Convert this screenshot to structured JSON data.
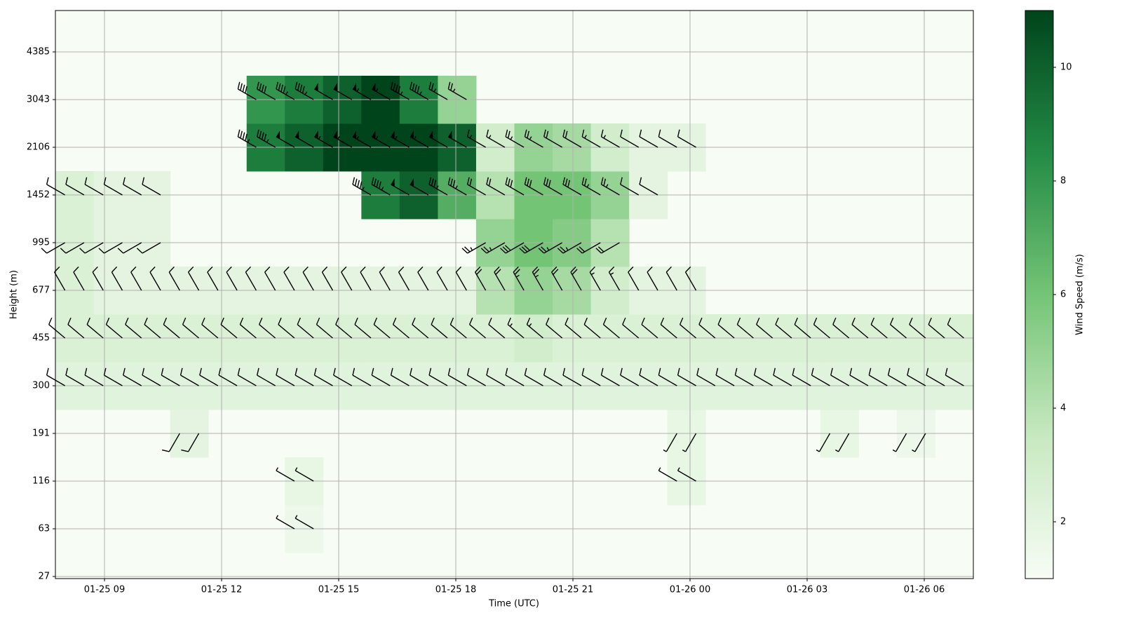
{
  "chart_data": {
    "type": "heatmap",
    "x_label": "Time (UTC)",
    "y_label": "Height (m)",
    "colorbar_label": "Wind Speed (m/s)",
    "xticks": [
      "01-25 09",
      "01-25 12",
      "01-25 15",
      "01-25 18",
      "01-25 21",
      "01-26 00",
      "01-26 03",
      "01-26 06"
    ],
    "yticks": [
      27,
      63,
      116,
      191,
      300,
      455,
      677,
      995,
      1452,
      2106,
      3043,
      4385
    ],
    "zlim": [
      1,
      11
    ],
    "zticks": [
      2,
      4,
      6,
      8,
      10
    ],
    "grid": true,
    "colors": [
      "#f7fcf5",
      "#c7e9c0",
      "#74c476",
      "#238b45",
      "#00441b"
    ],
    "directions": [
      300,
      300,
      300,
      210,
      300,
      310,
      330,
      240,
      300,
      300,
      300,
      300
    ],
    "speed": [
      [
        null,
        null,
        null,
        null,
        null,
        null,
        null,
        null,
        null,
        null,
        null,
        null,
        null,
        null,
        null,
        null,
        null,
        null,
        null,
        null,
        null,
        null,
        null,
        null
      ],
      [
        null,
        null,
        null,
        null,
        null,
        null,
        1.5,
        null,
        null,
        null,
        null,
        null,
        null,
        null,
        null,
        null,
        null,
        null,
        null,
        null,
        null,
        null,
        null,
        null
      ],
      [
        null,
        null,
        null,
        null,
        null,
        null,
        1.8,
        null,
        null,
        null,
        null,
        null,
        null,
        null,
        null,
        null,
        1.8,
        null,
        null,
        null,
        null,
        null,
        null,
        null
      ],
      [
        null,
        null,
        null,
        2,
        null,
        null,
        null,
        null,
        null,
        null,
        null,
        null,
        null,
        null,
        null,
        null,
        1.8,
        null,
        null,
        null,
        1.8,
        null,
        1.5,
        null
      ],
      [
        2.2,
        2.2,
        2.2,
        2.2,
        2.2,
        2.2,
        2.2,
        2.2,
        2.2,
        2.2,
        2.2,
        2.2,
        2.2,
        2.2,
        2.2,
        2.2,
        2.2,
        2.2,
        2.2,
        2.2,
        2.2,
        2.2,
        2.2,
        2.2
      ],
      [
        2.5,
        2.5,
        2.5,
        2.5,
        2.5,
        2.5,
        2.5,
        2.5,
        2.5,
        2.5,
        2.5,
        2.5,
        3,
        2.5,
        2.5,
        2.5,
        2.5,
        2.5,
        2.5,
        2.5,
        2.5,
        2.5,
        2.5,
        2.5
      ],
      [
        2.5,
        2,
        2,
        2,
        2,
        2,
        2,
        2,
        2,
        2,
        2,
        4,
        5,
        4.5,
        3,
        2,
        2,
        null,
        null,
        null,
        null,
        null,
        null,
        null
      ],
      [
        2.5,
        2,
        2,
        null,
        null,
        null,
        null,
        null,
        null,
        null,
        null,
        5,
        6,
        5.5,
        4,
        null,
        null,
        null,
        null,
        null,
        null,
        null,
        null,
        null
      ],
      [
        2.5,
        2,
        2,
        null,
        null,
        null,
        null,
        null,
        9,
        10,
        7,
        4,
        6,
        6,
        5,
        2,
        null,
        null,
        null,
        null,
        null,
        null,
        null,
        null
      ],
      [
        null,
        null,
        null,
        null,
        null,
        9,
        10,
        11,
        11,
        11,
        10,
        3,
        5,
        4.5,
        3,
        2,
        2,
        null,
        null,
        null,
        null,
        null,
        null,
        null
      ],
      [
        null,
        null,
        null,
        null,
        null,
        8,
        9,
        10,
        11,
        9,
        5,
        null,
        null,
        null,
        null,
        null,
        null,
        null,
        null,
        null,
        null,
        null,
        null,
        null
      ],
      [
        null,
        null,
        null,
        null,
        null,
        null,
        null,
        null,
        null,
        null,
        null,
        null,
        null,
        null,
        null,
        null,
        null,
        null,
        null,
        null,
        null,
        null,
        null,
        null
      ]
    ]
  }
}
